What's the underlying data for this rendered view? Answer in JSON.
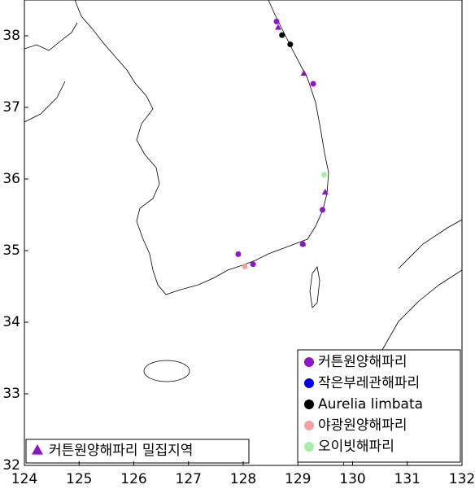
{
  "chart_data": {
    "type": "scatter",
    "xlim": [
      124,
      132
    ],
    "ylim": [
      32,
      38.5
    ],
    "xticks": [
      124,
      125,
      126,
      127,
      128,
      129,
      130,
      131,
      132
    ],
    "yticks": [
      32,
      33,
      34,
      35,
      36,
      37,
      38
    ],
    "series": [
      {
        "name": "커튼원양해파리",
        "color": "#9013cf",
        "marker": "circle",
        "x": [
          128.61,
          129.28,
          129.45,
          129.09,
          127.91,
          128.18
        ],
        "y": [
          38.2,
          37.33,
          35.57,
          35.09,
          34.95,
          34.81
        ]
      },
      {
        "name": "작은부레관해파리",
        "color": "#0000ee",
        "marker": "circle",
        "x": [],
        "y": []
      },
      {
        "name": "Aurelia limbata",
        "color": "#000000",
        "marker": "circle",
        "x": [
          128.71,
          128.86
        ],
        "y": [
          38.01,
          37.88
        ]
      },
      {
        "name": "야광원양해파리",
        "color": "#f4a0a0",
        "marker": "circle",
        "x": [
          128.03
        ],
        "y": [
          34.78
        ]
      },
      {
        "name": "오이빗해파리",
        "color": "#a6f0a6",
        "marker": "circle",
        "x": [
          129.48
        ],
        "y": [
          36.06
        ]
      },
      {
        "name": "커튼원양해파리 밀집지역",
        "color": "#8a14c8",
        "marker": "triangle",
        "x": [
          128.64,
          129.11,
          129.5,
          129.09
        ],
        "y": [
          38.12,
          37.48,
          35.82,
          35.1
        ]
      }
    ]
  }
}
